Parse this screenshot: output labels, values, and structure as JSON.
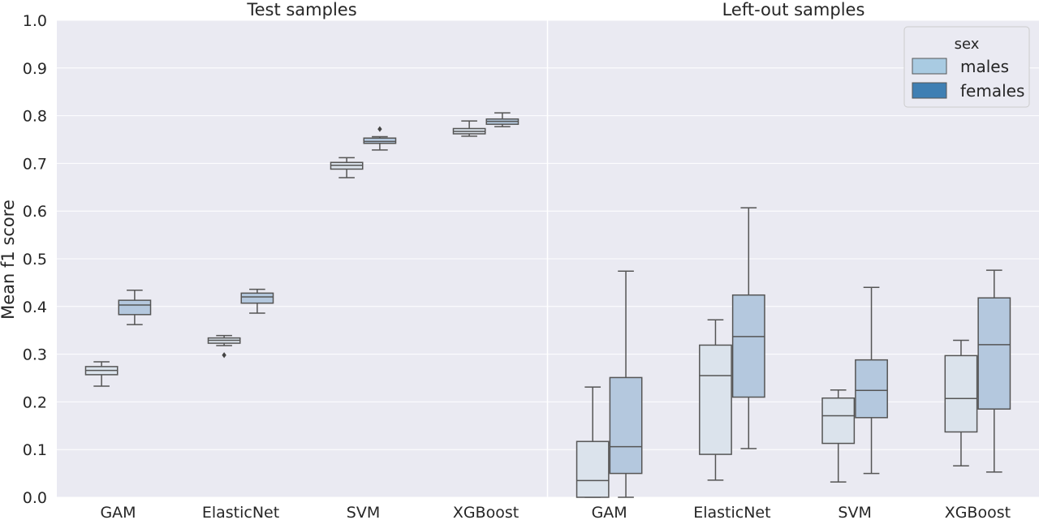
{
  "chart_data": {
    "type": "box",
    "ylabel": "Mean f1 score",
    "ylim": [
      0.0,
      1.0
    ],
    "yticks": [
      "0.0",
      "0.1",
      "0.2",
      "0.3",
      "0.4",
      "0.5",
      "0.6",
      "0.7",
      "0.8",
      "0.9",
      "1.0"
    ],
    "grid": true,
    "legend": {
      "title": "sex",
      "placement": "top-right",
      "entries": [
        {
          "label": "males",
          "color": "#a9cbe2"
        },
        {
          "label": "females",
          "color": "#3f7fb3"
        }
      ]
    },
    "panels": [
      {
        "title": "Test samples",
        "categories": [
          "GAM",
          "ElasticNet",
          "SVM",
          "XGBoost"
        ],
        "series": [
          {
            "name": "males",
            "boxes": [
              {
                "whislo": 0.233,
                "q1": 0.257,
                "med": 0.266,
                "q3": 0.274,
                "whishi": 0.284,
                "fliers": []
              },
              {
                "whislo": 0.318,
                "q1": 0.323,
                "med": 0.329,
                "q3": 0.334,
                "whishi": 0.339,
                "fliers": [
                  0.298
                ]
              },
              {
                "whislo": 0.67,
                "q1": 0.688,
                "med": 0.696,
                "q3": 0.702,
                "whishi": 0.712,
                "fliers": []
              },
              {
                "whislo": 0.757,
                "q1": 0.762,
                "med": 0.767,
                "q3": 0.773,
                "whishi": 0.789,
                "fliers": []
              }
            ]
          },
          {
            "name": "females",
            "boxes": [
              {
                "whislo": 0.362,
                "q1": 0.383,
                "med": 0.403,
                "q3": 0.413,
                "whishi": 0.434,
                "fliers": []
              },
              {
                "whislo": 0.386,
                "q1": 0.407,
                "med": 0.42,
                "q3": 0.428,
                "whishi": 0.436,
                "fliers": []
              },
              {
                "whislo": 0.728,
                "q1": 0.742,
                "med": 0.746,
                "q3": 0.753,
                "whishi": 0.756,
                "fliers": [
                  0.772
                ]
              },
              {
                "whislo": 0.777,
                "q1": 0.782,
                "med": 0.788,
                "q3": 0.793,
                "whishi": 0.806,
                "fliers": []
              }
            ]
          }
        ]
      },
      {
        "title": "Left-out samples",
        "categories": [
          "GAM",
          "ElasticNet",
          "SVM",
          "XGBoost"
        ],
        "series": [
          {
            "name": "males",
            "boxes": [
              {
                "whislo": 0.0,
                "q1": 0.0,
                "med": 0.035,
                "q3": 0.117,
                "whishi": 0.231,
                "fliers": []
              },
              {
                "whislo": 0.036,
                "q1": 0.09,
                "med": 0.255,
                "q3": 0.319,
                "whishi": 0.372,
                "fliers": []
              },
              {
                "whislo": 0.032,
                "q1": 0.113,
                "med": 0.171,
                "q3": 0.208,
                "whishi": 0.225,
                "fliers": []
              },
              {
                "whislo": 0.066,
                "q1": 0.137,
                "med": 0.207,
                "q3": 0.297,
                "whishi": 0.329,
                "fliers": []
              }
            ]
          },
          {
            "name": "females",
            "boxes": [
              {
                "whislo": 0.0,
                "q1": 0.05,
                "med": 0.106,
                "q3": 0.251,
                "whishi": 0.474,
                "fliers": []
              },
              {
                "whislo": 0.102,
                "q1": 0.21,
                "med": 0.337,
                "q3": 0.424,
                "whishi": 0.607,
                "fliers": []
              },
              {
                "whislo": 0.05,
                "q1": 0.167,
                "med": 0.224,
                "q3": 0.288,
                "whishi": 0.44,
                "fliers": []
              },
              {
                "whislo": 0.053,
                "q1": 0.185,
                "med": 0.32,
                "q3": 0.418,
                "whishi": 0.476,
                "fliers": []
              }
            ]
          }
        ]
      }
    ]
  }
}
